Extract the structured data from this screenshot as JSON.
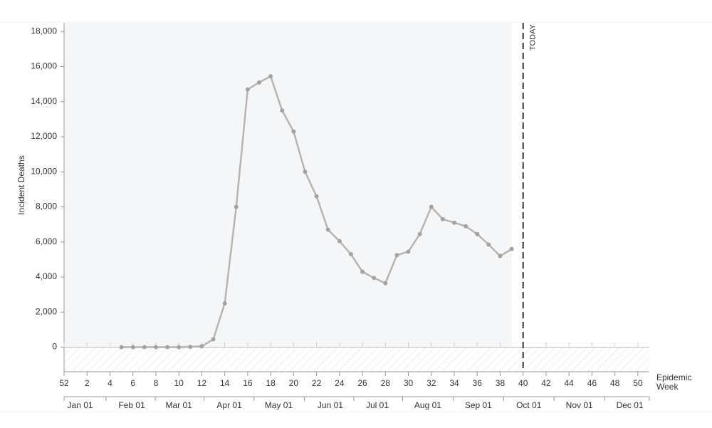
{
  "chart_data": {
    "type": "line",
    "y_label": "Incident Deaths",
    "x_label": "Epidemic Week",
    "x": [
      5,
      6,
      7,
      8,
      9,
      10,
      11,
      12,
      13,
      14,
      15,
      16,
      17,
      18,
      19,
      20,
      21,
      22,
      23,
      24,
      25,
      26,
      27,
      28,
      29,
      30,
      31,
      32,
      33,
      34,
      35,
      36,
      37,
      38,
      39
    ],
    "series": [
      {
        "name": "Incident Deaths",
        "color": "#b5b5b5",
        "values": [
          0,
          0,
          0,
          0,
          0,
          0,
          20,
          50,
          450,
          2500,
          8000,
          14700,
          15100,
          15450,
          13500,
          12300,
          10000,
          8600,
          6700,
          6050,
          5300,
          4300,
          3950,
          3650,
          5250,
          5450,
          6450,
          8000,
          7300,
          7100,
          6900,
          6450,
          5850,
          5200,
          5600
        ]
      }
    ],
    "xlim": [
      0,
      51
    ],
    "xticks": [
      {
        "value": 0,
        "label": "52"
      },
      2,
      4,
      6,
      8,
      10,
      12,
      14,
      16,
      18,
      20,
      22,
      24,
      26,
      28,
      30,
      32,
      34,
      36,
      38,
      40,
      42,
      44,
      46,
      48,
      50
    ],
    "x2ticks": [
      {
        "value": 1.4,
        "label": "Jan 01"
      },
      {
        "value": 5.9,
        "label": "Feb 01"
      },
      {
        "value": 10,
        "label": "Mar 01"
      },
      {
        "value": 14.4,
        "label": "Apr 01"
      },
      {
        "value": 18.7,
        "label": "May 01"
      },
      {
        "value": 23.2,
        "label": "Jun 01"
      },
      {
        "value": 27.3,
        "label": "Jul 01"
      },
      {
        "value": 31.7,
        "label": "Aug 01"
      },
      {
        "value": 36.1,
        "label": "Sep 01"
      },
      {
        "value": 40.5,
        "label": "Oct 01"
      },
      {
        "value": 44.9,
        "label": "Nov 01"
      },
      {
        "value": 49.3,
        "label": "Dec 01"
      }
    ],
    "ylim": [
      -1400,
      18500
    ],
    "yticks": [
      0,
      {
        "value": 2000,
        "label": "2,000"
      },
      {
        "value": 4000,
        "label": "4,000"
      },
      {
        "value": 6000,
        "label": "6,000"
      },
      {
        "value": 8000,
        "label": "8,000"
      },
      {
        "value": 10000,
        "label": "10,000"
      },
      {
        "value": 12000,
        "label": "12,000"
      },
      {
        "value": 14000,
        "label": "14,000"
      },
      {
        "value": 16000,
        "label": "16,000"
      },
      {
        "value": 18000,
        "label": "18,000"
      }
    ],
    "today": {
      "value": 40,
      "label": "TODAY"
    }
  }
}
